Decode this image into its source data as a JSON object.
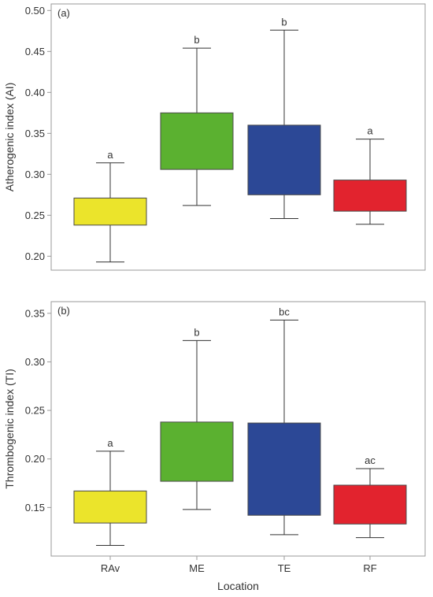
{
  "colors": {
    "RAv": "#ebe42b",
    "ME": "#5bb130",
    "TE": "#2c4896",
    "RF": "#e2232e",
    "frame": "#9a9a9a",
    "text": "#333333",
    "whisker": "#333333"
  },
  "chart_data": [
    {
      "type": "box",
      "panel_label": "(a)",
      "ylabel": "Atherogenic index (AI)",
      "xlabel": "",
      "ylim": [
        0.183,
        0.508
      ],
      "yticks": [
        0.2,
        0.25,
        0.3,
        0.35,
        0.4,
        0.45,
        0.5
      ],
      "ytick_labels": [
        "0.20",
        "0.25",
        "0.30",
        "0.35",
        "0.40",
        "0.45",
        "0.50"
      ],
      "categories": [
        "RAv",
        "ME",
        "TE",
        "RF"
      ],
      "boxes": [
        {
          "category": "RAv",
          "min": 0.193,
          "q1": 0.238,
          "q3": 0.271,
          "max": 0.314,
          "letter": "a"
        },
        {
          "category": "ME",
          "min": 0.262,
          "q1": 0.306,
          "q3": 0.375,
          "max": 0.454,
          "letter": "b"
        },
        {
          "category": "TE",
          "min": 0.246,
          "q1": 0.275,
          "q3": 0.36,
          "max": 0.476,
          "letter": "b"
        },
        {
          "category": "RF",
          "min": 0.239,
          "q1": 0.255,
          "q3": 0.293,
          "max": 0.343,
          "letter": "a"
        }
      ],
      "show_xticks": false,
      "grid": false
    },
    {
      "type": "box",
      "panel_label": "(b)",
      "ylabel": "Thrombogenic index (TI)",
      "xlabel": "Location",
      "ylim": [
        0.1,
        0.362
      ],
      "yticks": [
        0.15,
        0.2,
        0.25,
        0.3,
        0.35
      ],
      "ytick_labels": [
        "0.15",
        "0.20",
        "0.25",
        "0.30",
        "0.35"
      ],
      "categories": [
        "RAv",
        "ME",
        "TE",
        "RF"
      ],
      "boxes": [
        {
          "category": "RAv",
          "min": 0.111,
          "q1": 0.134,
          "q3": 0.167,
          "max": 0.208,
          "letter": "a"
        },
        {
          "category": "ME",
          "min": 0.148,
          "q1": 0.177,
          "q3": 0.238,
          "max": 0.322,
          "letter": "b"
        },
        {
          "category": "TE",
          "min": 0.122,
          "q1": 0.142,
          "q3": 0.237,
          "max": 0.343,
          "letter": "bc"
        },
        {
          "category": "RF",
          "min": 0.119,
          "q1": 0.133,
          "q3": 0.173,
          "max": 0.19,
          "letter": "ac"
        }
      ],
      "show_xticks": true,
      "grid": false
    }
  ]
}
